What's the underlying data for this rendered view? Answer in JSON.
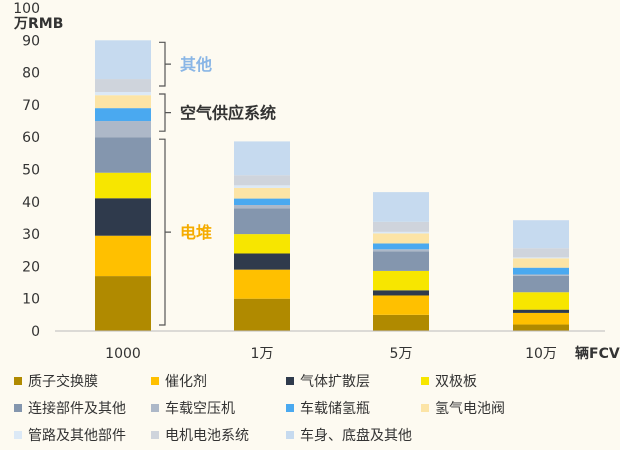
{
  "chart_data": {
    "type": "bar",
    "stacked": true,
    "title": "",
    "ylabel": "万RMB",
    "xlabel": "辆FCV",
    "ylim": [
      0,
      100
    ],
    "yticks": [
      "0",
      "10",
      "20",
      "30",
      "40",
      "50",
      "60",
      "70",
      "80",
      "90",
      "100"
    ],
    "categories": [
      "1000",
      "1万",
      "5万",
      "10万"
    ],
    "series": [
      {
        "name": "质子交换膜",
        "color": "#b08a00",
        "values": [
          17,
          10,
          5,
          2
        ]
      },
      {
        "name": "催化剂",
        "color": "#ffc000",
        "values": [
          12.5,
          9,
          6,
          3.6
        ]
      },
      {
        "name": "气体扩散层",
        "color": "#2f3a4c",
        "values": [
          11.6,
          5,
          1.6,
          1
        ]
      },
      {
        "name": "双极板",
        "color": "#f7e600",
        "values": [
          7.9,
          6,
          6,
          5.4
        ]
      },
      {
        "name": "连接部件及其他",
        "color": "#8496ae",
        "values": [
          11,
          8,
          6,
          5.1
        ]
      },
      {
        "name": "车载空压机",
        "color": "#adb8c8",
        "values": [
          5,
          1,
          0.7,
          0.4
        ]
      },
      {
        "name": "车载储氢瓶",
        "color": "#4aa9f0",
        "values": [
          4,
          2,
          1.8,
          2.1
        ]
      },
      {
        "name": "氢气电池阀",
        "color": "#fce4a6",
        "values": [
          4,
          3.3,
          3.1,
          2.9
        ]
      },
      {
        "name": "管路及其他部件",
        "color": "#dce9f6",
        "values": [
          1,
          0.8,
          0.5,
          0.3
        ]
      },
      {
        "name": "电机电池系统",
        "color": "#cfd4dc",
        "values": [
          4,
          3.1,
          3.1,
          2.8
        ]
      },
      {
        "name": "车身、底盘及其他",
        "color": "#c6daef",
        "values": [
          12,
          10.5,
          9.2,
          8.7
        ]
      }
    ],
    "annotations": [
      {
        "text": "其他",
        "range": [
          74,
          90
        ],
        "color": "#8ab6e6"
      },
      {
        "text": "空气供应系统",
        "range": [
          60,
          74
        ],
        "color": "#333333"
      },
      {
        "text": "电堆",
        "range": [
          0,
          60
        ],
        "color": "#f5ac00"
      }
    ],
    "grid": false,
    "legend": "bottom"
  }
}
